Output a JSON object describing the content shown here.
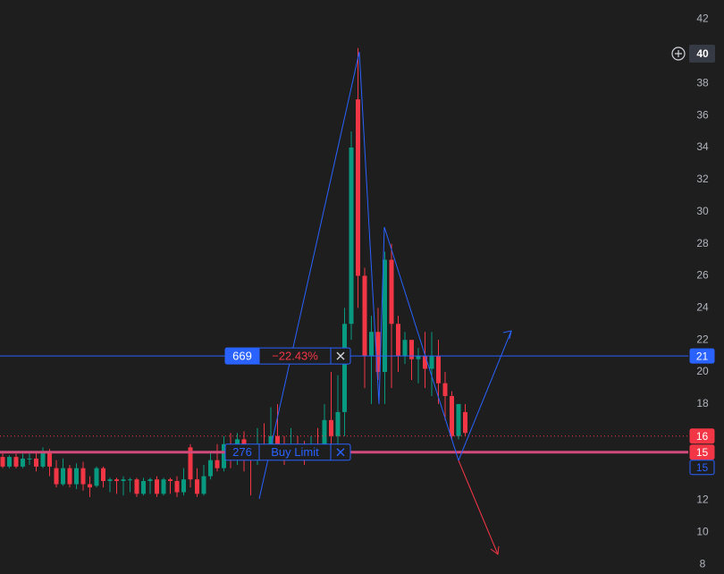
{
  "chart_data": {
    "type": "candlestick",
    "colors": {
      "up": "#089981",
      "down": "#f23645"
    },
    "open": [
      14.7,
      14.1,
      14.7,
      14.1,
      14.6,
      14.6,
      14.1,
      15,
      14,
      13,
      14,
      13,
      14,
      13,
      12.9,
      14,
      13.2,
      13.3,
      13.2,
      13.3,
      13.3,
      12.4,
      13.2,
      13.3,
      12.4,
      13.3,
      13.2,
      12.5,
      15.3,
      13.3,
      12.4,
      13.5,
      14.5,
      14,
      15.5,
      14.5,
      15.8,
      14.8,
      14.5,
      15.5,
      15,
      16,
      15,
      14.6,
      15.5,
      15,
      14.6,
      15.5,
      14.8,
      17,
      16,
      17.5,
      23,
      37,
      26,
      21,
      22.5,
      20,
      27,
      23,
      21,
      22,
      20.8,
      21,
      20.2,
      21,
      19.3,
      18.5,
      16,
      17.5
    ],
    "high": [
      15,
      14.8,
      14.9,
      14.9,
      15,
      15,
      15.3,
      15.2,
      14.5,
      14.6,
      14.2,
      14.3,
      14.4,
      13.5,
      14.1,
      14.1,
      13.4,
      13.4,
      13.5,
      13.4,
      13.4,
      13.4,
      13.4,
      13.5,
      13.4,
      13.4,
      13.5,
      14,
      15.5,
      14,
      14.2,
      15,
      15.5,
      16,
      16.2,
      16.2,
      16.3,
      15.5,
      16.5,
      16.8,
      17.8,
      18,
      16,
      16.5,
      16,
      15.7,
      16,
      16.5,
      18,
      20,
      19.8,
      24,
      35,
      40.2,
      26.5,
      23.5,
      24,
      27.5,
      28,
      23.5,
      22.5,
      22,
      21.5,
      22.5,
      22.5,
      22,
      20,
      18.8,
      18,
      18
    ],
    "low": [
      14,
      14,
      14,
      14,
      14.2,
      13.8,
      14,
      13.5,
      12.8,
      12.9,
      12.8,
      12.7,
      12.6,
      12.2,
      12.8,
      12.8,
      12.5,
      12.4,
      12.3,
      12.5,
      12.2,
      12.3,
      12.4,
      12.2,
      12.3,
      12.4,
      12.2,
      12.3,
      12.8,
      12.2,
      12.3,
      13.3,
      13.8,
      13.8,
      14,
      14.2,
      13.8,
      12.3,
      14.2,
      14.5,
      14.8,
      14.5,
      14.2,
      14.5,
      14.6,
      14.2,
      14.5,
      14.5,
      14.6,
      15.5,
      15.5,
      16,
      22,
      24,
      19,
      18,
      19.5,
      18,
      19,
      20,
      20.5,
      19.5,
      19.3,
      19,
      18.5,
      18,
      17,
      15.8,
      15.8,
      16
    ],
    "close": [
      14.1,
      14.7,
      14.1,
      14.6,
      14.6,
      14.1,
      15,
      14.1,
      13,
      14,
      13,
      14,
      13,
      12.8,
      14,
      13.2,
      13.3,
      13.2,
      13.3,
      13.3,
      12.4,
      13.2,
      13.3,
      12.4,
      13.3,
      13.2,
      12.5,
      13.3,
      13.3,
      12.4,
      13.5,
      14.5,
      14,
      15.5,
      14.5,
      15.8,
      14.8,
      14.5,
      15.5,
      15,
      16,
      15,
      14.6,
      15.5,
      15,
      14.6,
      15.5,
      14.8,
      17,
      16,
      17.5,
      23,
      34,
      26,
      21,
      22.5,
      20,
      27,
      23,
      21,
      22,
      20.8,
      21,
      20.2,
      21,
      19.3,
      18.5,
      16,
      18,
      16.2
    ],
    "ylim": [
      7.4,
      43.2
    ],
    "yticks": [
      8,
      10,
      12,
      14,
      16,
      18,
      20,
      22,
      24,
      26,
      28,
      30,
      32,
      34,
      36,
      38,
      40,
      42
    ],
    "crosshair_price": 40,
    "orders": [
      {
        "price": 21,
        "quantity": 669,
        "change": "−22.43%",
        "color": "#2962ff"
      },
      {
        "price": 15,
        "quantity": 276,
        "label": "Buy Limit",
        "color": "#2962ff"
      }
    ],
    "price_tags": [
      {
        "value": 21,
        "color": "#2962ff",
        "filled": true
      },
      {
        "value": 16,
        "color": "#f23645",
        "filled": true
      },
      {
        "value": 15,
        "color": "#f23645",
        "filled": true
      },
      {
        "value": 15,
        "color": "#2962ff",
        "filled": false
      }
    ]
  }
}
